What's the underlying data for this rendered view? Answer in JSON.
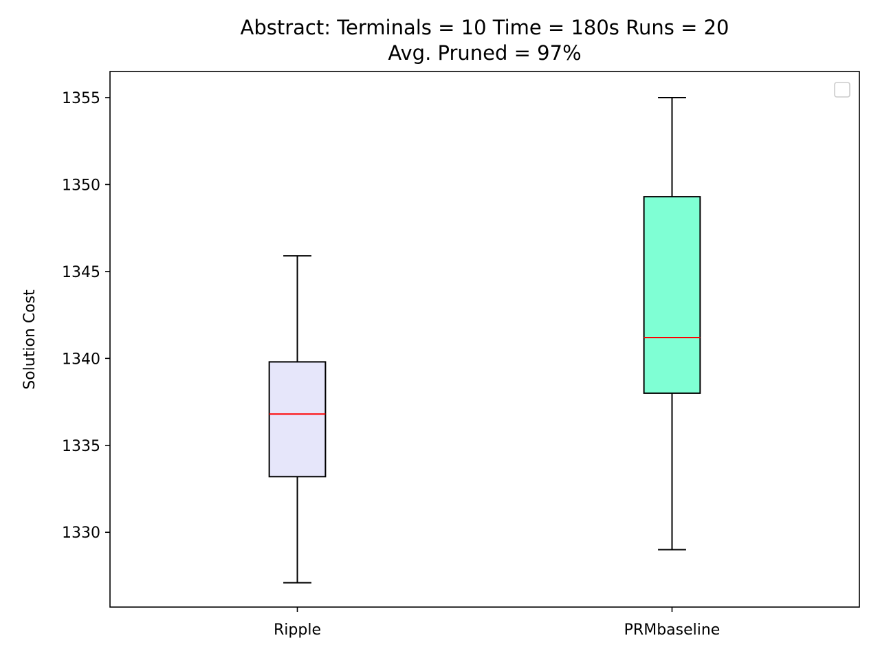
{
  "chart_data": {
    "type": "box",
    "title_line1": "Abstract:  Terminals = 10  Time = 180s  Runs = 20",
    "title_line2": "Avg. Pruned = 97%",
    "xlabel": "",
    "ylabel": "Solution Cost",
    "categories": [
      "Ripple",
      "PRMbaseline"
    ],
    "boxes": [
      {
        "category": "Ripple",
        "whisker_low": 1327.1,
        "q1": 1333.2,
        "median": 1336.8,
        "q3": 1339.8,
        "whisker_high": 1345.9,
        "fill": "#e6e6fa"
      },
      {
        "category": "PRMbaseline",
        "whisker_low": 1329.0,
        "q1": 1338.0,
        "median": 1341.2,
        "q3": 1349.3,
        "whisker_high": 1355.0,
        "fill": "#7fffd4"
      }
    ],
    "median_color": "#ff0000",
    "ylim": [
      1325.7,
      1356.5
    ],
    "yticks": [
      1330,
      1335,
      1340,
      1345,
      1350,
      1355
    ],
    "grid": false,
    "legend": {
      "position": "top-right",
      "entries": []
    }
  }
}
